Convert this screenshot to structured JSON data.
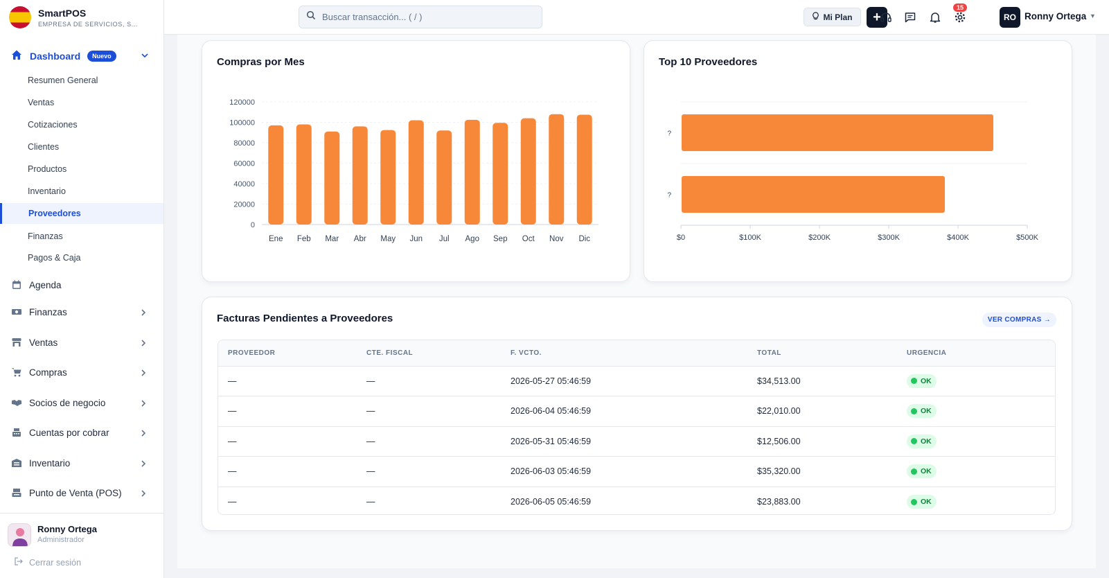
{
  "app": {
    "name": "SmartPOS",
    "company": "EMPRESA DE SERVICIOS, S..."
  },
  "header": {
    "search_placeholder": "Buscar transacción... ( / )",
    "plan_label": "Mi Plan",
    "plus_label": "+",
    "notification_count": "15",
    "user_initials": "RO",
    "user_name": "Ronny Ortega"
  },
  "sidebar": {
    "dashboard": {
      "label": "Dashboard",
      "badge": "Nuevo"
    },
    "dashboard_items": [
      "Resumen General",
      "Ventas",
      "Cotizaciones",
      "Clientes",
      "Productos",
      "Inventario",
      "Proveedores",
      "Finanzas",
      "Pagos & Caja"
    ],
    "active_item": "Proveedores",
    "nav_items": [
      {
        "label": "Agenda",
        "icon": "calendar-icon"
      },
      {
        "label": "Finanzas",
        "icon": "money-icon"
      },
      {
        "label": "Ventas",
        "icon": "store-icon"
      },
      {
        "label": "Compras",
        "icon": "cart-icon"
      },
      {
        "label": "Socios de negocio",
        "icon": "handshake-icon"
      },
      {
        "label": "Cuentas por cobrar",
        "icon": "cash-register-icon"
      },
      {
        "label": "Inventario",
        "icon": "warehouse-icon"
      },
      {
        "label": "Punto de Venta (POS)",
        "icon": "pos-icon"
      }
    ],
    "footer": {
      "user_name": "Ronny Ortega",
      "role": "Administrador",
      "logout": "Cerrar sesión"
    }
  },
  "colors": {
    "accent": "#1d4ed8",
    "bar": "#f7883a",
    "ok": "#22c55e",
    "dark": "#0f172a"
  },
  "chart_data": [
    {
      "type": "bar",
      "title": "Compras por Mes",
      "categories": [
        "Ene",
        "Feb",
        "Mar",
        "Abr",
        "May",
        "Jun",
        "Jul",
        "Ago",
        "Sep",
        "Oct",
        "Nov",
        "Dic"
      ],
      "values": [
        97000,
        98000,
        91000,
        96000,
        92500,
        102000,
        92000,
        102500,
        99500,
        104000,
        108000,
        107500
      ],
      "yticks": [
        "0",
        "20000",
        "40000",
        "60000",
        "80000",
        "100000",
        "120000"
      ],
      "ylim": [
        0,
        120000
      ],
      "grid": true
    },
    {
      "type": "bar",
      "orientation": "horizontal",
      "title": "Top 10 Proveedores",
      "categories": [
        "?",
        "?"
      ],
      "values": [
        450000,
        380000
      ],
      "xticks": [
        "$0",
        "$100K",
        "$200K",
        "$300K",
        "$400K",
        "$500K"
      ],
      "xlim": [
        0,
        500000
      ],
      "grid": true
    }
  ],
  "pending": {
    "title": "Facturas Pendientes a Proveedores",
    "action": "VER COMPRAS →",
    "columns": [
      "PROVEEDOR",
      "CTE. FISCAL",
      "F. VCTO.",
      "TOTAL",
      "URGENCIA"
    ],
    "rows": [
      {
        "proveedor": "—",
        "fiscal": "—",
        "vcto": "2026-05-27 05:46:59",
        "total": "$34,513.00",
        "urgencia": "OK"
      },
      {
        "proveedor": "—",
        "fiscal": "—",
        "vcto": "2026-06-04 05:46:59",
        "total": "$22,010.00",
        "urgencia": "OK"
      },
      {
        "proveedor": "—",
        "fiscal": "—",
        "vcto": "2026-05-31 05:46:59",
        "total": "$12,506.00",
        "urgencia": "OK"
      },
      {
        "proveedor": "—",
        "fiscal": "—",
        "vcto": "2026-06-03 05:46:59",
        "total": "$35,320.00",
        "urgencia": "OK"
      },
      {
        "proveedor": "—",
        "fiscal": "—",
        "vcto": "2026-06-05 05:46:59",
        "total": "$23,883.00",
        "urgencia": "OK"
      }
    ]
  }
}
